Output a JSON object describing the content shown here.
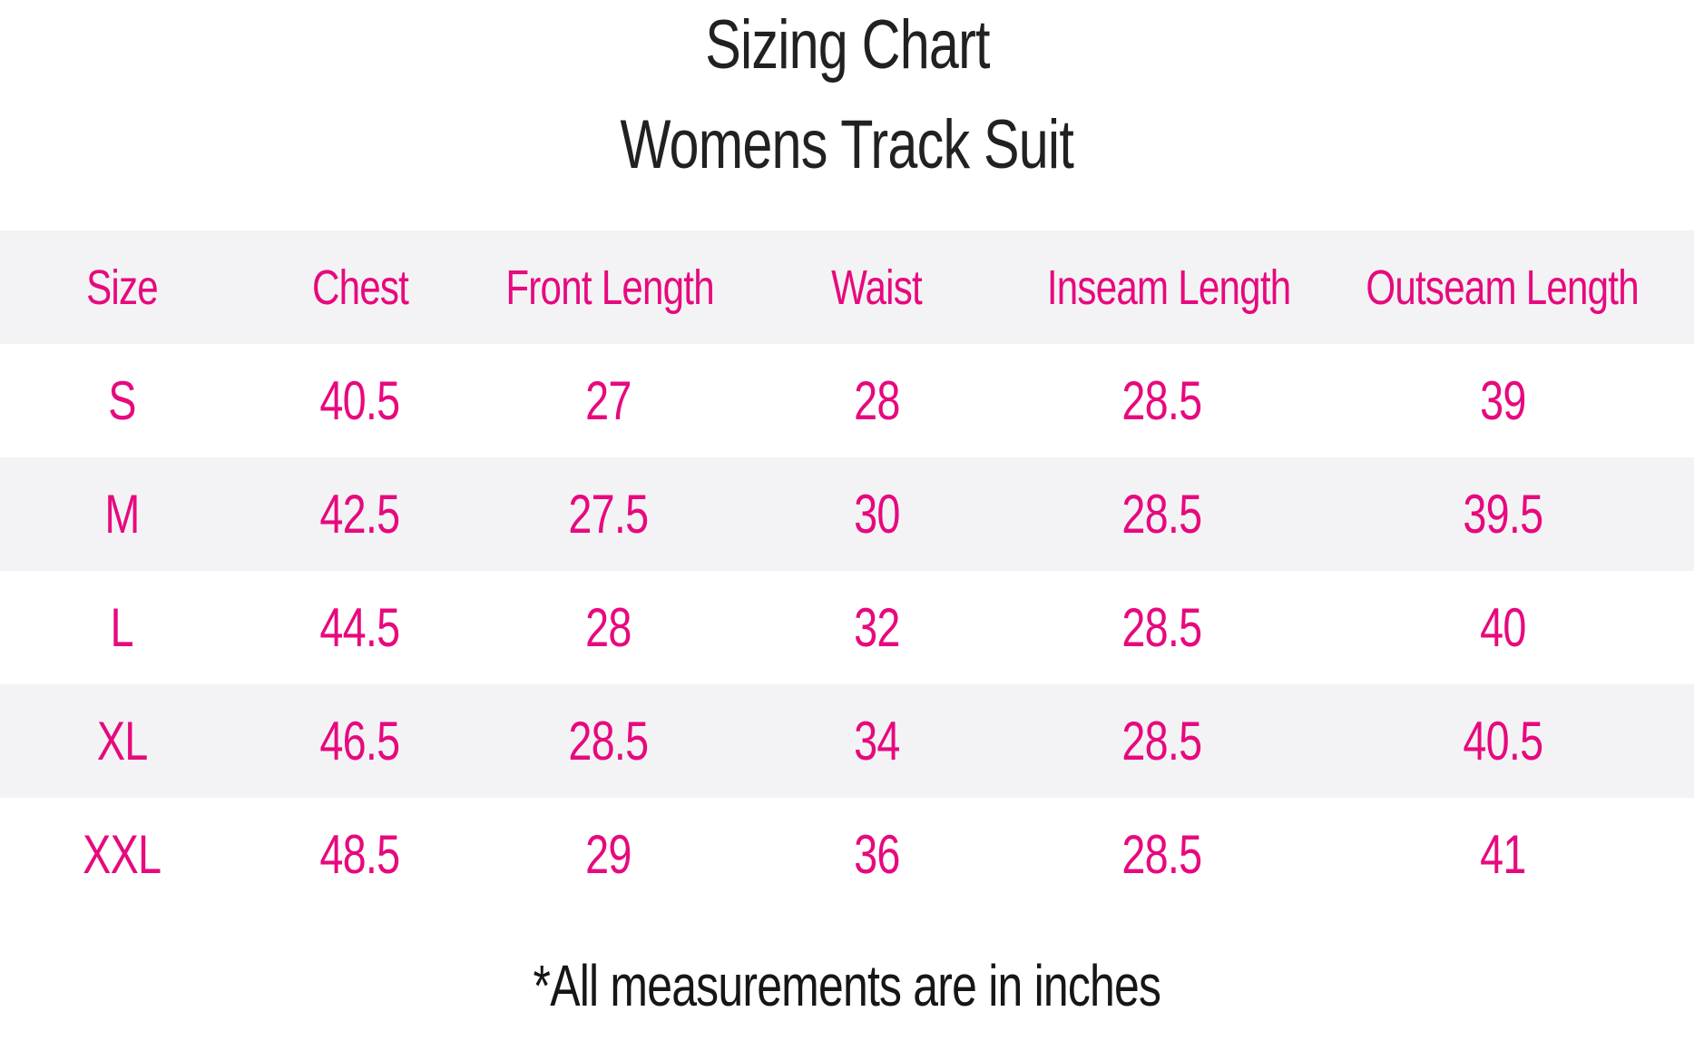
{
  "header": {
    "title": "Sizing Chart",
    "subtitle": "Womens Track Suit"
  },
  "footer": {
    "note": "*All measurements are in inches"
  },
  "colors": {
    "accent_pink": "#e7097e",
    "row_stripe_gray": "#f3f3f5",
    "heading_text": "#212124",
    "background": "#ffffff"
  },
  "chart_data": {
    "type": "table",
    "title": "Sizing Chart",
    "subtitle": "Womens Track Suit",
    "units": "inches",
    "footnote": "*All measurements are in inches",
    "columns": [
      "Size",
      "Chest",
      "Front Length",
      "Waist",
      "Inseam Length",
      "Outseam Length"
    ],
    "rows": [
      [
        "S",
        40.5,
        27,
        28,
        28.5,
        39
      ],
      [
        "M",
        42.5,
        27.5,
        30,
        28.5,
        39.5
      ],
      [
        "L",
        44.5,
        28,
        32,
        28.5,
        40
      ],
      [
        "XL",
        46.5,
        28.5,
        34,
        28.5,
        40.5
      ],
      [
        "XXL",
        48.5,
        29,
        36,
        28.5,
        41
      ]
    ],
    "layout": {
      "striped_rows": [
        "header",
        "M",
        "XL"
      ],
      "grid_lines": false,
      "text_alignment": "center",
      "legend": "none"
    }
  }
}
